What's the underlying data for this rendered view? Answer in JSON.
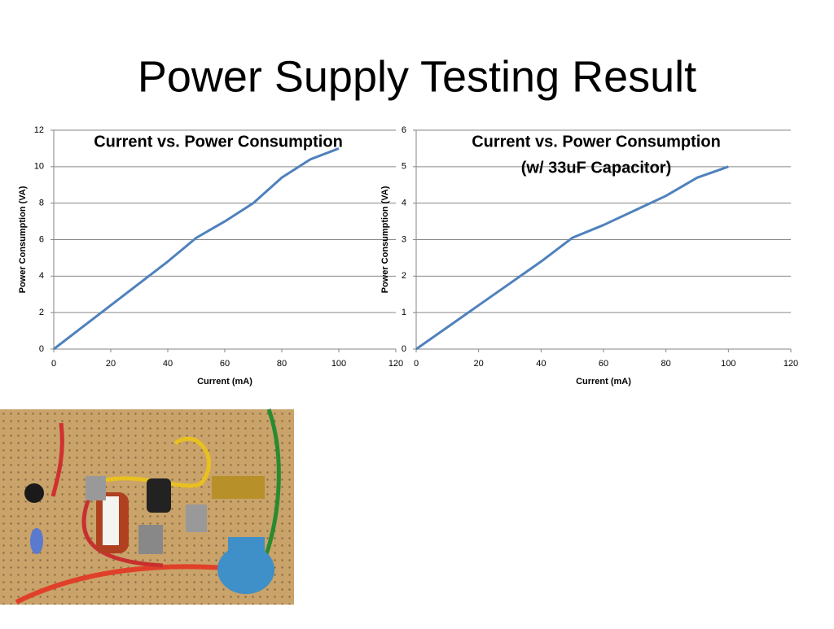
{
  "slide": {
    "title": "Power Supply Testing Result"
  },
  "chart_data": [
    {
      "type": "line",
      "title": "Current  vs. Power Consumption",
      "x_label": "Current (mA)",
      "y_label": "Power Consumption (VA)",
      "x": [
        0,
        10,
        20,
        30,
        40,
        50,
        60,
        70,
        80,
        90,
        100
      ],
      "series": [
        {
          "color": "#4f81bd",
          "values": [
            0,
            1.2,
            2.4,
            3.6,
            4.8,
            6.1,
            7.0,
            8.0,
            9.4,
            10.4,
            11
          ]
        }
      ],
      "xlim": [
        0,
        120
      ],
      "xticks": [
        0,
        20,
        40,
        60,
        80,
        100,
        120
      ],
      "ylim": [
        0,
        12
      ],
      "yticks": [
        0,
        2,
        4,
        6,
        8,
        10,
        12
      ],
      "grid": true
    },
    {
      "type": "line",
      "title": "Current  vs. Power Consumption",
      "subtitle": "(w/ 33uF Capacitor)",
      "x_label": "Current (mA)",
      "y_label": "Power Consumption (VA)",
      "x": [
        0,
        10,
        20,
        30,
        40,
        50,
        60,
        70,
        80,
        90,
        100
      ],
      "series": [
        {
          "color": "#4f81bd",
          "values": [
            0,
            0.6,
            1.2,
            1.8,
            2.4,
            3.05,
            3.4,
            3.8,
            4.2,
            4.7,
            5
          ]
        }
      ],
      "xlim": [
        0,
        120
      ],
      "xticks": [
        0,
        20,
        40,
        60,
        80,
        100,
        120
      ],
      "ylim": [
        0,
        6
      ],
      "yticks": [
        0,
        1,
        2,
        3,
        4,
        5,
        6
      ],
      "grid": true
    }
  ]
}
